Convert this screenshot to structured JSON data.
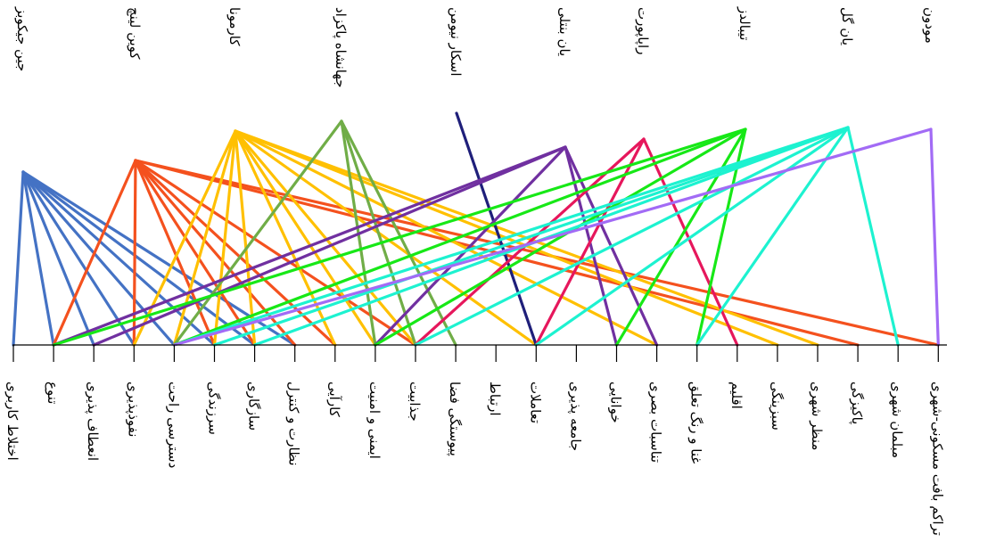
{
  "theorists": [
    {
      "name": "جین جیکوبز",
      "color": "#4472C4",
      "links": [
        0,
        1,
        2,
        3,
        4,
        5,
        6,
        7
      ]
    },
    {
      "name": "کوین لینچ",
      "color": "#F4511E",
      "links": [
        1,
        3,
        5,
        6,
        7,
        8,
        10,
        21,
        23
      ]
    },
    {
      "name": "کارمونا",
      "color": "#FFC000",
      "links": [
        3,
        4,
        5,
        6,
        8,
        9,
        10,
        13,
        16,
        19,
        20
      ]
    },
    {
      "name": "جهانشاه پاکزاد",
      "color": "#70AD47",
      "links": [
        4,
        9,
        10,
        11
      ]
    },
    {
      "name": "اسکار نیومن",
      "color": "#1F1F7A",
      "links": [
        13
      ]
    },
    {
      "name": "یان بنتلی",
      "color": "#7030A0",
      "links": [
        1,
        2,
        9,
        15,
        16
      ]
    },
    {
      "name": "راپاپورت",
      "color": "#E6175C",
      "links": [
        10,
        13,
        18
      ]
    },
    {
      "name": "تیبالدز",
      "color": "#17E817",
      "links": [
        1,
        4,
        9,
        15,
        17
      ]
    },
    {
      "name": "یان گل",
      "color": "#1DF2D0",
      "links": [
        4,
        5,
        6,
        10,
        13,
        17,
        22
      ]
    },
    {
      "name": "مودون",
      "color": "#A26BF5",
      "links": [
        4,
        23
      ]
    }
  ],
  "criteria": [
    "اختلاط کاربری",
    "تنوع",
    "انعطاف پذیری",
    "نفوذپذیری",
    "دسترسی راحت",
    "سرزندگی",
    "سازگاری",
    "نظارت و کنترل",
    "کارآیی",
    "ایمنی و امنیت",
    "جذابیت",
    "پیوستگی فضا",
    "ارتباط",
    "تعاملات",
    "جامعه پذیری",
    "خوانایی",
    "تناسبات بصری",
    "غنا و رنگ تعلق",
    "اقلیم",
    "سبزینگی",
    "منظر شهری",
    "پاکیزگی",
    "مبلمان شهری",
    "تراکم بافت مسکونی-شهری"
  ]
}
